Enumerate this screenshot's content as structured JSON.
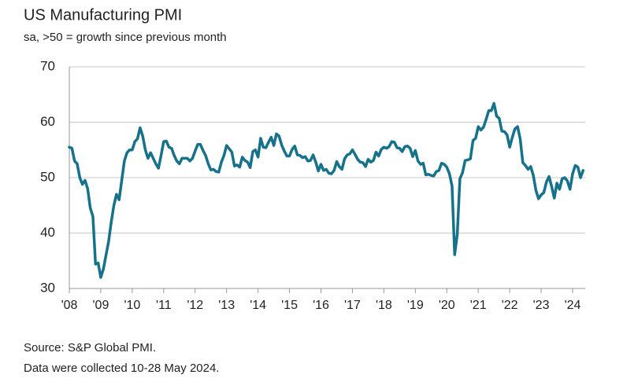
{
  "chart_data": {
    "type": "line",
    "title": "US Manufacturing PMI",
    "subtitle": "sa, >50 = growth since previous month",
    "categories": [
      "'08",
      null,
      null,
      null,
      null,
      null,
      null,
      null,
      null,
      null,
      null,
      null,
      "'09",
      null,
      null,
      null,
      null,
      null,
      null,
      null,
      null,
      null,
      null,
      null,
      "'10",
      null,
      null,
      null,
      null,
      null,
      null,
      null,
      null,
      null,
      null,
      null,
      "'11",
      null,
      null,
      null,
      null,
      null,
      null,
      null,
      null,
      null,
      null,
      null,
      "'12",
      null,
      null,
      null,
      null,
      null,
      null,
      null,
      null,
      null,
      null,
      null,
      "'13",
      null,
      null,
      null,
      null,
      null,
      null,
      null,
      null,
      null,
      null,
      null,
      "'14",
      null,
      null,
      null,
      null,
      null,
      null,
      null,
      null,
      null,
      null,
      null,
      "'15",
      null,
      null,
      null,
      null,
      null,
      null,
      null,
      null,
      null,
      null,
      null,
      "'16",
      null,
      null,
      null,
      null,
      null,
      null,
      null,
      null,
      null,
      null,
      null,
      "'17",
      null,
      null,
      null,
      null,
      null,
      null,
      null,
      null,
      null,
      null,
      null,
      "'18",
      null,
      null,
      null,
      null,
      null,
      null,
      null,
      null,
      null,
      null,
      null,
      "'19",
      null,
      null,
      null,
      null,
      null,
      null,
      null,
      null,
      null,
      null,
      null,
      "'20",
      null,
      null,
      null,
      null,
      null,
      null,
      null,
      null,
      null,
      null,
      null,
      "'21",
      null,
      null,
      null,
      null,
      null,
      null,
      null,
      null,
      null,
      null,
      null,
      "'22",
      null,
      null,
      null,
      null,
      null,
      null,
      null,
      null,
      null,
      null,
      null,
      "'23",
      null,
      null,
      null,
      null,
      null,
      null,
      null,
      null,
      null,
      null,
      null,
      "'24",
      null,
      null,
      null,
      null
    ],
    "values": [
      55.5,
      55.3,
      53,
      52.5,
      50,
      48.8,
      49.5,
      48,
      44.5,
      43,
      34.4,
      34.6,
      32,
      33.5,
      36,
      38.5,
      42,
      45,
      47,
      46,
      49.5,
      53,
      54.5,
      55,
      55,
      56.5,
      57,
      59,
      57.5,
      55,
      53.5,
      54.5,
      53.5,
      52.5,
      51.7,
      54,
      56.5,
      56.6,
      55.5,
      55.3,
      54,
      53,
      52.5,
      53.5,
      53.5,
      53.5,
      53,
      53.5,
      54.8,
      56,
      56,
      54.9,
      54,
      52.5,
      51.4,
      51.5,
      51.1,
      51,
      52.8,
      54,
      55.8,
      55.2,
      54.6,
      52.1,
      52.3,
      51.9,
      53.7,
      53.1,
      52.8,
      51.8,
      54.7,
      55,
      53.7,
      57.1,
      55.5,
      55.4,
      56.4,
      57.3,
      55.8,
      57.9,
      57.5,
      55.9,
      54.8,
      53.9,
      53.9,
      55.1,
      55.7,
      54.1,
      54,
      53.6,
      53.8,
      53,
      53.1,
      54.1,
      52.8,
      51.2,
      52.4,
      51.3,
      51.5,
      50.8,
      50.7,
      51.3,
      52.9,
      52,
      51.5,
      53.4,
      54.1,
      54.3,
      55,
      54.2,
      53.3,
      52.8,
      52.7,
      52,
      53.3,
      52.8,
      53.1,
      54.6,
      53.9,
      55.1,
      55.5,
      55.3,
      55.6,
      56.5,
      56.4,
      55.4,
      55.3,
      54.7,
      55.6,
      55.7,
      55.3,
      53.8,
      54.9,
      53,
      52.4,
      52.6,
      50.5,
      50.6,
      50.4,
      50.3,
      51.1,
      51.3,
      52.6,
      52.4,
      51.9,
      50.7,
      48.5,
      36.1,
      39.8,
      49.8,
      50.9,
      53.1,
      53.2,
      53.4,
      56.7,
      57.1,
      59.2,
      58.6,
      59.1,
      60.5,
      62.1,
      62.1,
      63.4,
      61.1,
      60.7,
      58.4,
      58.3,
      57.7,
      55.5,
      57.3,
      58.8,
      59.2,
      57,
      52.7,
      52.2,
      51.5,
      52,
      50.4,
      47.7,
      46.2,
      46.9,
      47.3,
      49.2,
      50.2,
      48.4,
      46.3,
      49,
      47.9,
      49.8,
      50,
      49.4,
      47.9,
      50.7,
      52.2,
      51.9,
      50,
      51.3
    ],
    "color": "#16718a",
    "ylim": [
      30,
      70
    ],
    "yticks": [
      30,
      40,
      50,
      60,
      70
    ],
    "grid": true,
    "notes": [
      "Source: S&P Global PMI.",
      "Data were collected 10-28 May 2024."
    ]
  }
}
